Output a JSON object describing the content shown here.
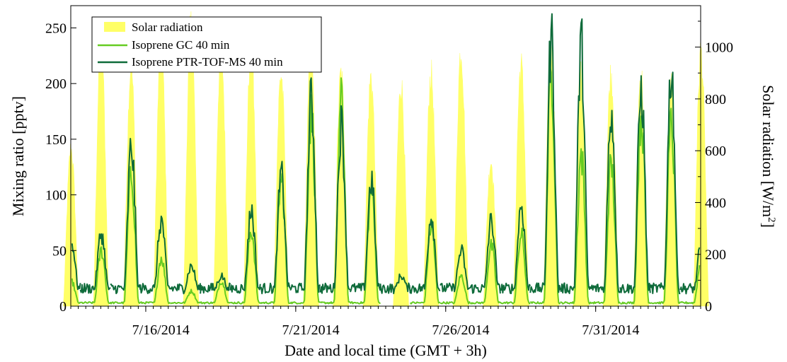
{
  "chart_data": {
    "type": "line",
    "xlabel": "Date and local time (GMT + 3h)",
    "ylabel_left": "Mixing ratio [pptv]",
    "ylabel_right_main": "Solar radiation [W/m",
    "ylabel_right_sup": "2",
    "ylabel_right_close": "]",
    "xlim": [
      "2014-07-13 12:00",
      "2014-08-03 12:00"
    ],
    "ylim_left": [
      0,
      270
    ],
    "ylim_right": [
      0,
      1160
    ],
    "x_ticks": [
      "7/16/2014",
      "7/21/2014",
      "7/26/2014",
      "7/31/2014"
    ],
    "x_tick_days": [
      16,
      21,
      26,
      31
    ],
    "y_ticks_left": [
      "0",
      "50",
      "100",
      "150",
      "200",
      "250"
    ],
    "y_ticks_left_values": [
      0,
      50,
      100,
      150,
      200,
      250
    ],
    "y_ticks_right": [
      "0",
      "200",
      "400",
      "600",
      "800",
      "1000"
    ],
    "y_ticks_right_values": [
      0,
      200,
      400,
      600,
      800,
      1000
    ],
    "legend_position": "top-left",
    "grid": false,
    "series": [
      {
        "name": "Solar radiation",
        "kind": "area",
        "axis": "right",
        "color": "#FFFF66",
        "daily_peak": [
          {
            "date": "7/13",
            "peak": 650
          },
          {
            "date": "7/14",
            "peak": 1100
          },
          {
            "date": "7/15",
            "peak": 990
          },
          {
            "date": "7/16",
            "peak": 1090
          },
          {
            "date": "7/17",
            "peak": 1160
          },
          {
            "date": "7/18",
            "peak": 1070
          },
          {
            "date": "7/19",
            "peak": 1070
          },
          {
            "date": "7/20",
            "peak": 960
          },
          {
            "date": "7/21",
            "peak": 1040
          },
          {
            "date": "7/22",
            "peak": 960
          },
          {
            "date": "7/23",
            "peak": 950
          },
          {
            "date": "7/24",
            "peak": 920
          },
          {
            "date": "7/25",
            "peak": 960
          },
          {
            "date": "7/26",
            "peak": 1060
          },
          {
            "date": "7/27",
            "peak": 600
          },
          {
            "date": "7/28",
            "peak": 1000
          },
          {
            "date": "7/29",
            "peak": 1060
          },
          {
            "date": "7/30",
            "peak": 980
          },
          {
            "date": "7/31",
            "peak": 960
          },
          {
            "date": "8/1",
            "peak": 960
          },
          {
            "date": "8/2",
            "peak": 920
          },
          {
            "date": "8/3",
            "peak": 1050
          }
        ]
      },
      {
        "name": "Isoprene GC 40 min",
        "kind": "line",
        "axis": "left",
        "color": "#66CC22",
        "daily_peak": [
          {
            "date": "7/13",
            "peak": 25
          },
          {
            "date": "7/14",
            "peak": 55
          },
          {
            "date": "7/15",
            "peak": 130
          },
          {
            "date": "7/16",
            "peak": 48
          },
          {
            "date": "7/17",
            "peak": 15
          },
          {
            "date": "7/18",
            "peak": 25
          },
          {
            "date": "7/19",
            "peak": 75
          },
          {
            "date": "7/20",
            "peak": 125
          },
          {
            "date": "7/21",
            "peak": 190
          },
          {
            "date": "7/22",
            "peak": 205
          },
          {
            "date": "7/23",
            "peak": 115
          },
          {
            "date": "7/24",
            "peak": null
          },
          {
            "date": "7/25",
            "peak": 80
          },
          {
            "date": "7/26",
            "peak": 30
          },
          {
            "date": "7/27",
            "peak": 60
          },
          {
            "date": "7/28",
            "peak": 70
          },
          {
            "date": "7/29",
            "peak": 230
          },
          {
            "date": "7/30",
            "peak": 150
          },
          {
            "date": "7/31",
            "peak": 140
          },
          {
            "date": "8/1",
            "peak": 190
          },
          {
            "date": "8/2",
            "peak": 180
          },
          {
            "date": "8/3",
            "peak": 45
          }
        ]
      },
      {
        "name": "Isoprene PTR-TOF-MS 40 min",
        "kind": "line",
        "axis": "left",
        "color": "#0E6B3A",
        "daily_peak": [
          {
            "date": "7/13",
            "peak": 65
          },
          {
            "date": "7/14",
            "peak": 72
          },
          {
            "date": "7/15",
            "peak": 158
          },
          {
            "date": "7/16",
            "peak": 85
          },
          {
            "date": "7/17",
            "peak": 40
          },
          {
            "date": "7/18",
            "peak": 30
          },
          {
            "date": "7/19",
            "peak": 95
          },
          {
            "date": "7/20",
            "peak": 130
          },
          {
            "date": "7/21",
            "peak": 205
          },
          {
            "date": "7/22",
            "peak": 180
          },
          {
            "date": "7/23",
            "peak": 125
          },
          {
            "date": "7/24",
            "peak": 30
          },
          {
            "date": "7/25",
            "peak": 90
          },
          {
            "date": "7/26",
            "peak": 55
          },
          {
            "date": "7/27",
            "peak": 85
          },
          {
            "date": "7/28",
            "peak": 100
          },
          {
            "date": "7/29",
            "peak": 265
          },
          {
            "date": "7/30",
            "peak": 258
          },
          {
            "date": "7/31",
            "peak": 195
          },
          {
            "date": "8/1",
            "peak": 215
          },
          {
            "date": "8/2",
            "peak": 235
          },
          {
            "date": "8/3",
            "peak": 60
          }
        ]
      }
    ]
  }
}
